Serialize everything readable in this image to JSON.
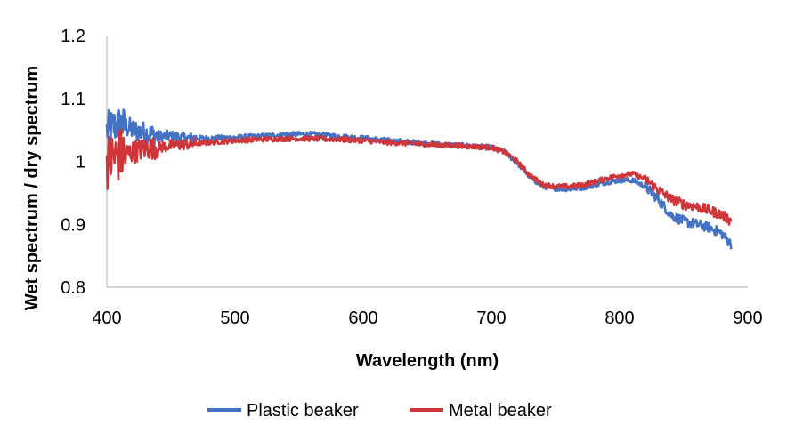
{
  "chart_data": {
    "type": "line",
    "title": "",
    "xlabel": "Wavelength (nm)",
    "ylabel": "Wet spectrum / dry spectrum",
    "xlim": [
      400,
      900
    ],
    "ylim": [
      0.8,
      1.2
    ],
    "x_ticks": [
      "400",
      "500",
      "600",
      "700",
      "800",
      "900"
    ],
    "y_ticks": [
      "0.8",
      "0.9",
      "1",
      "1.1",
      "1.2"
    ],
    "grid": false,
    "legend_position": "bottom",
    "series": [
      {
        "name": "Plastic beaker",
        "color": "#4472c4",
        "points": [
          [
            400,
            1.05
          ],
          [
            410,
            1.06
          ],
          [
            420,
            1.05
          ],
          [
            430,
            1.045
          ],
          [
            440,
            1.04
          ],
          [
            450,
            1.04
          ],
          [
            460,
            1.037
          ],
          [
            480,
            1.037
          ],
          [
            500,
            1.038
          ],
          [
            520,
            1.04
          ],
          [
            540,
            1.043
          ],
          [
            560,
            1.043
          ],
          [
            580,
            1.04
          ],
          [
            600,
            1.037
          ],
          [
            620,
            1.033
          ],
          [
            640,
            1.03
          ],
          [
            660,
            1.027
          ],
          [
            680,
            1.025
          ],
          [
            700,
            1.022
          ],
          [
            710,
            1.015
          ],
          [
            720,
            0.998
          ],
          [
            730,
            0.975
          ],
          [
            740,
            0.96
          ],
          [
            750,
            0.957
          ],
          [
            760,
            0.956
          ],
          [
            770,
            0.958
          ],
          [
            780,
            0.962
          ],
          [
            790,
            0.967
          ],
          [
            800,
            0.97
          ],
          [
            810,
            0.97
          ],
          [
            820,
            0.96
          ],
          [
            830,
            0.94
          ],
          [
            840,
            0.915
          ],
          [
            850,
            0.905
          ],
          [
            860,
            0.9
          ],
          [
            870,
            0.895
          ],
          [
            880,
            0.885
          ],
          [
            887,
            0.868
          ]
        ]
      },
      {
        "name": "Metal beaker",
        "color": "#d0353a",
        "points": [
          [
            400,
            1.0
          ],
          [
            410,
            1.01
          ],
          [
            420,
            1.015
          ],
          [
            430,
            1.02
          ],
          [
            440,
            1.022
          ],
          [
            450,
            1.025
          ],
          [
            460,
            1.027
          ],
          [
            480,
            1.03
          ],
          [
            500,
            1.033
          ],
          [
            520,
            1.035
          ],
          [
            540,
            1.036
          ],
          [
            560,
            1.036
          ],
          [
            580,
            1.035
          ],
          [
            600,
            1.033
          ],
          [
            620,
            1.03
          ],
          [
            640,
            1.028
          ],
          [
            660,
            1.026
          ],
          [
            680,
            1.024
          ],
          [
            700,
            1.022
          ],
          [
            710,
            1.015
          ],
          [
            720,
            1.0
          ],
          [
            730,
            0.978
          ],
          [
            740,
            0.963
          ],
          [
            750,
            0.96
          ],
          [
            760,
            0.96
          ],
          [
            770,
            0.962
          ],
          [
            780,
            0.967
          ],
          [
            790,
            0.973
          ],
          [
            800,
            0.978
          ],
          [
            810,
            0.98
          ],
          [
            820,
            0.972
          ],
          [
            830,
            0.955
          ],
          [
            840,
            0.94
          ],
          [
            850,
            0.932
          ],
          [
            860,
            0.928
          ],
          [
            870,
            0.922
          ],
          [
            880,
            0.915
          ],
          [
            887,
            0.905
          ]
        ]
      }
    ]
  }
}
